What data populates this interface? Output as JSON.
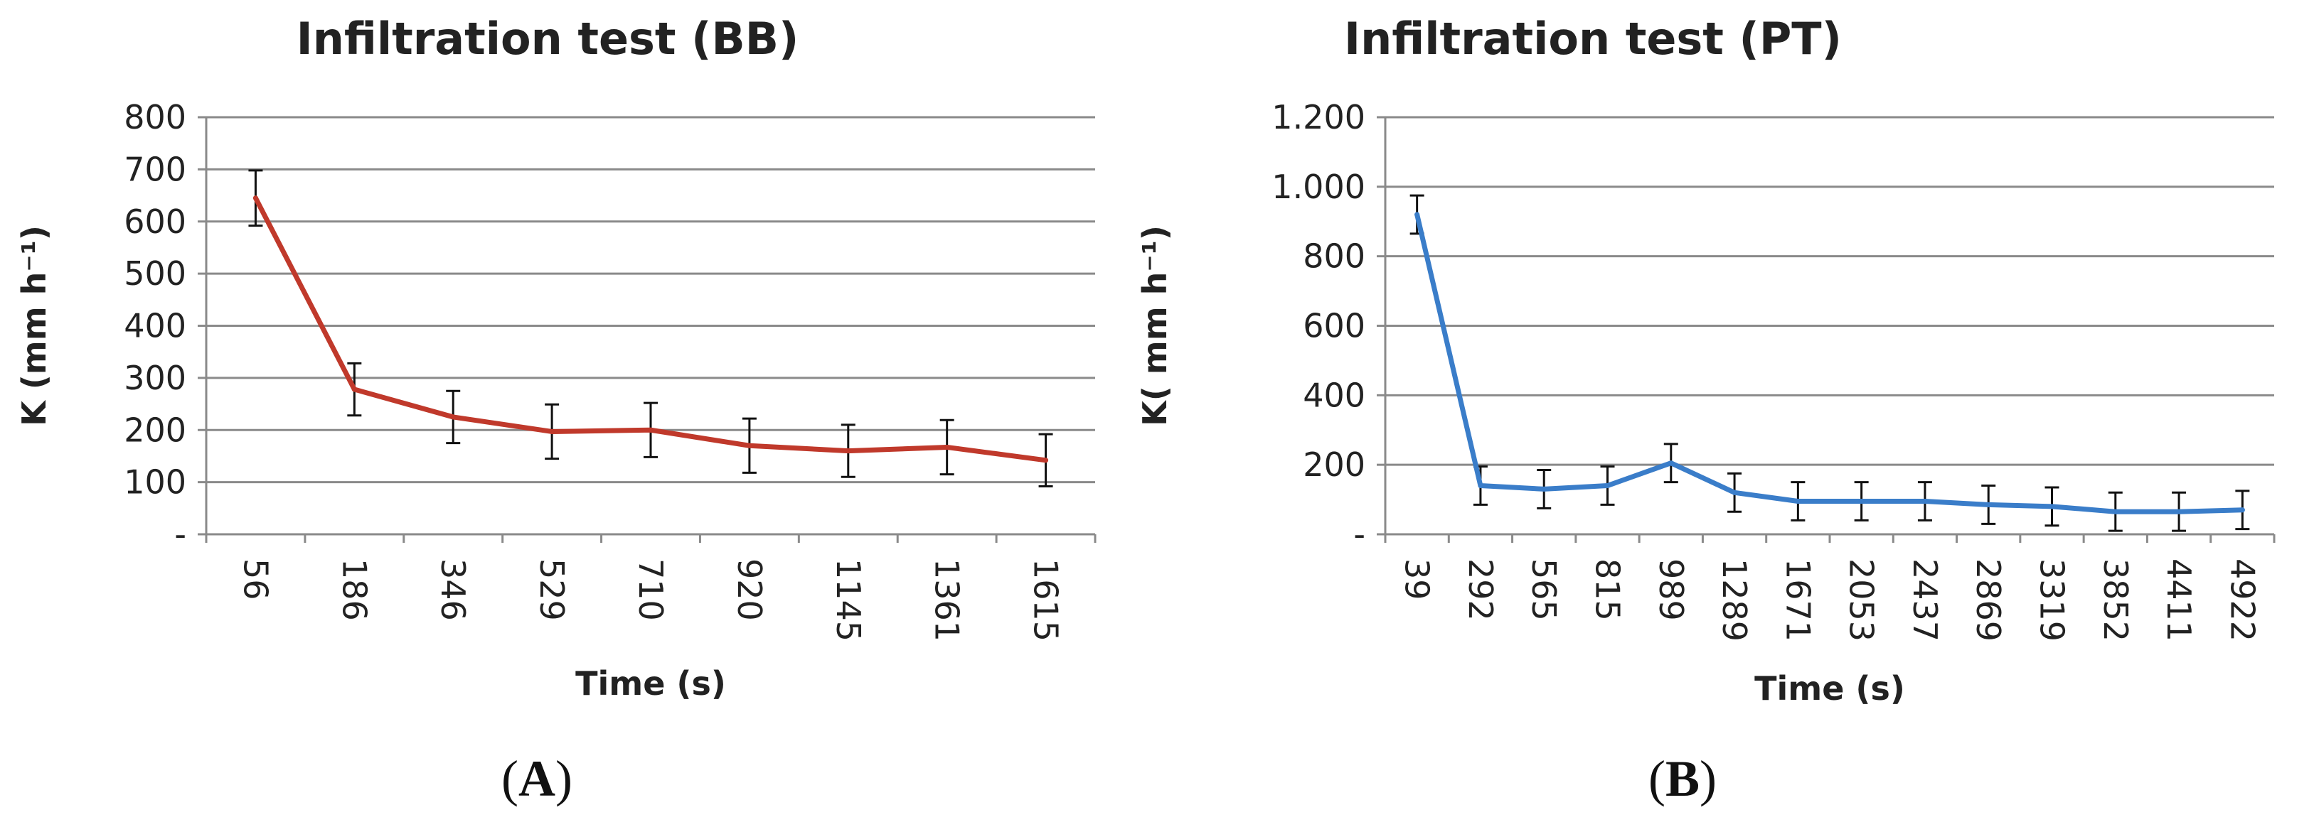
{
  "chart_data": [
    {
      "type": "line",
      "title": "Infiltration test (BB)",
      "xlabel": "Time (s)",
      "ylabel": "K (mm h⁻¹)",
      "categories": [
        "56",
        "186",
        "346",
        "529",
        "710",
        "920",
        "1145",
        "1361",
        "1615"
      ],
      "series": [
        {
          "values": [
            645,
            278,
            225,
            197,
            200,
            170,
            160,
            167,
            142
          ],
          "error": [
            53,
            50,
            50,
            52,
            52,
            52,
            50,
            52,
            50
          ],
          "color": "#c0392b"
        }
      ],
      "ylim": [
        0,
        800
      ],
      "yticks": [
        0,
        100,
        200,
        300,
        400,
        500,
        600,
        700,
        800
      ],
      "ytick_labels": [
        "-",
        "100",
        "200",
        "300",
        "400",
        "500",
        "600",
        "700",
        "800"
      ],
      "grid": true,
      "legend": "none",
      "panel_label": "A"
    },
    {
      "type": "line",
      "title": "Infiltration test (PT)",
      "xlabel": "Time (s)",
      "ylabel": "K( mm h⁻¹)",
      "categories": [
        "39",
        "292",
        "565",
        "815",
        "989",
        "1289",
        "1671",
        "2053",
        "2437",
        "2869",
        "3319",
        "3852",
        "4411",
        "4922"
      ],
      "series": [
        {
          "values": [
            920,
            140,
            130,
            140,
            205,
            120,
            95,
            95,
            95,
            85,
            80,
            65,
            65,
            70
          ],
          "error": [
            55,
            55,
            55,
            55,
            55,
            55,
            55,
            55,
            55,
            55,
            55,
            55,
            55,
            55
          ],
          "color": "#3a7dc9"
        }
      ],
      "ylim": [
        0,
        1200
      ],
      "yticks": [
        0,
        200,
        400,
        600,
        800,
        1000,
        1200
      ],
      "ytick_labels": [
        "-",
        "200",
        "400",
        "600",
        "800",
        "1.000",
        "1.200"
      ],
      "grid": true,
      "legend": "none",
      "panel_label": "B"
    }
  ]
}
